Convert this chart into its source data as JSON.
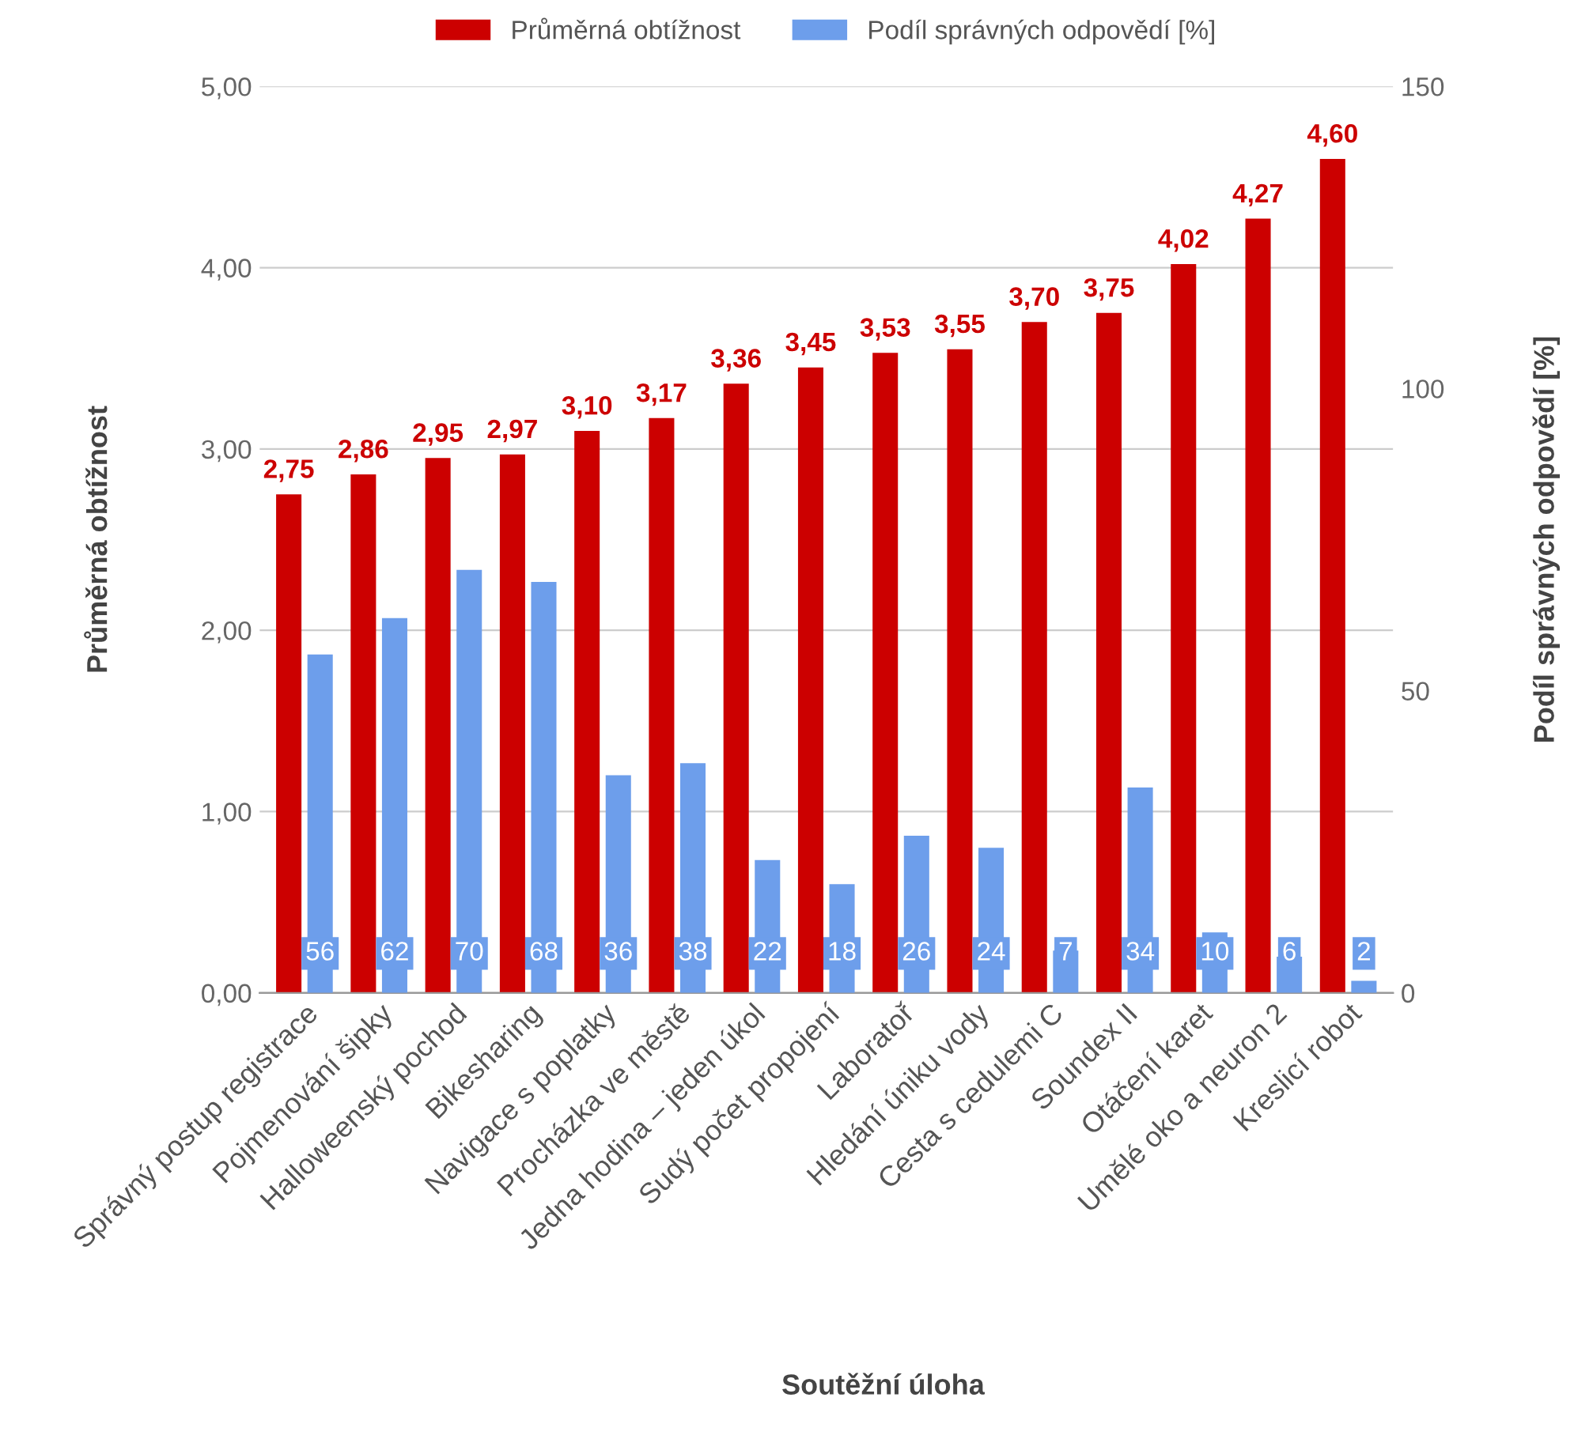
{
  "chart_data": {
    "type": "bar",
    "xlabel": "Soutěžní úloha",
    "ylabel": "Průměrná obtížnost",
    "y2label": "Podíl správných odpovědí [%]",
    "categories": [
      "Správný postup registrace",
      "Pojmenování šipky",
      "Halloweenský pochod",
      "Bikesharing",
      "Navigace s poplatky",
      "Procházka ve městě",
      "Jedna hodina – jeden úkol",
      "Sudý počet propojení",
      "Laboratoř",
      "Hledání úniku vody",
      "Cesta s cedulemi C",
      "Soundex II",
      "Otáčení karet",
      "Umělé oko a neuron 2",
      "Kreslicí robot"
    ],
    "series": [
      {
        "name": "Průměrná obtížnost",
        "color": "#cc0000",
        "values": [
          2.75,
          2.86,
          2.95,
          2.97,
          3.1,
          3.17,
          3.36,
          3.45,
          3.53,
          3.55,
          3.7,
          3.75,
          4.02,
          4.27,
          4.6
        ],
        "value_labels": [
          "2,75",
          "2,86",
          "2,95",
          "2,97",
          "3,10",
          "3,17",
          "3,36",
          "3,45",
          "3,53",
          "3,55",
          "3,70",
          "3,75",
          "4,02",
          "4,27",
          "4,60"
        ]
      },
      {
        "name": "Podíl správných odpovědí [%]",
        "color": "#6d9eeb",
        "axis": "y2",
        "values": [
          56,
          62,
          70,
          68,
          36,
          38,
          22,
          18,
          26,
          24,
          7,
          34,
          10,
          6,
          2
        ],
        "value_labels": [
          "56",
          "62",
          "70",
          "68",
          "36",
          "38",
          "22",
          "18",
          "26",
          "24",
          "7",
          "34",
          "10",
          "6",
          "2"
        ]
      }
    ],
    "ylim": [
      0,
      5
    ],
    "yticks": [
      {
        "value": 0,
        "label": "0,00"
      },
      {
        "value": 1,
        "label": "1,00"
      },
      {
        "value": 2,
        "label": "2,00"
      },
      {
        "value": 3,
        "label": "3,00"
      },
      {
        "value": 4,
        "label": "4,00"
      },
      {
        "value": 5,
        "label": "5,00"
      }
    ],
    "y2lim": [
      0,
      150
    ],
    "y2ticks": [
      0,
      50,
      100,
      150
    ],
    "grid": "y",
    "legend": "top"
  }
}
